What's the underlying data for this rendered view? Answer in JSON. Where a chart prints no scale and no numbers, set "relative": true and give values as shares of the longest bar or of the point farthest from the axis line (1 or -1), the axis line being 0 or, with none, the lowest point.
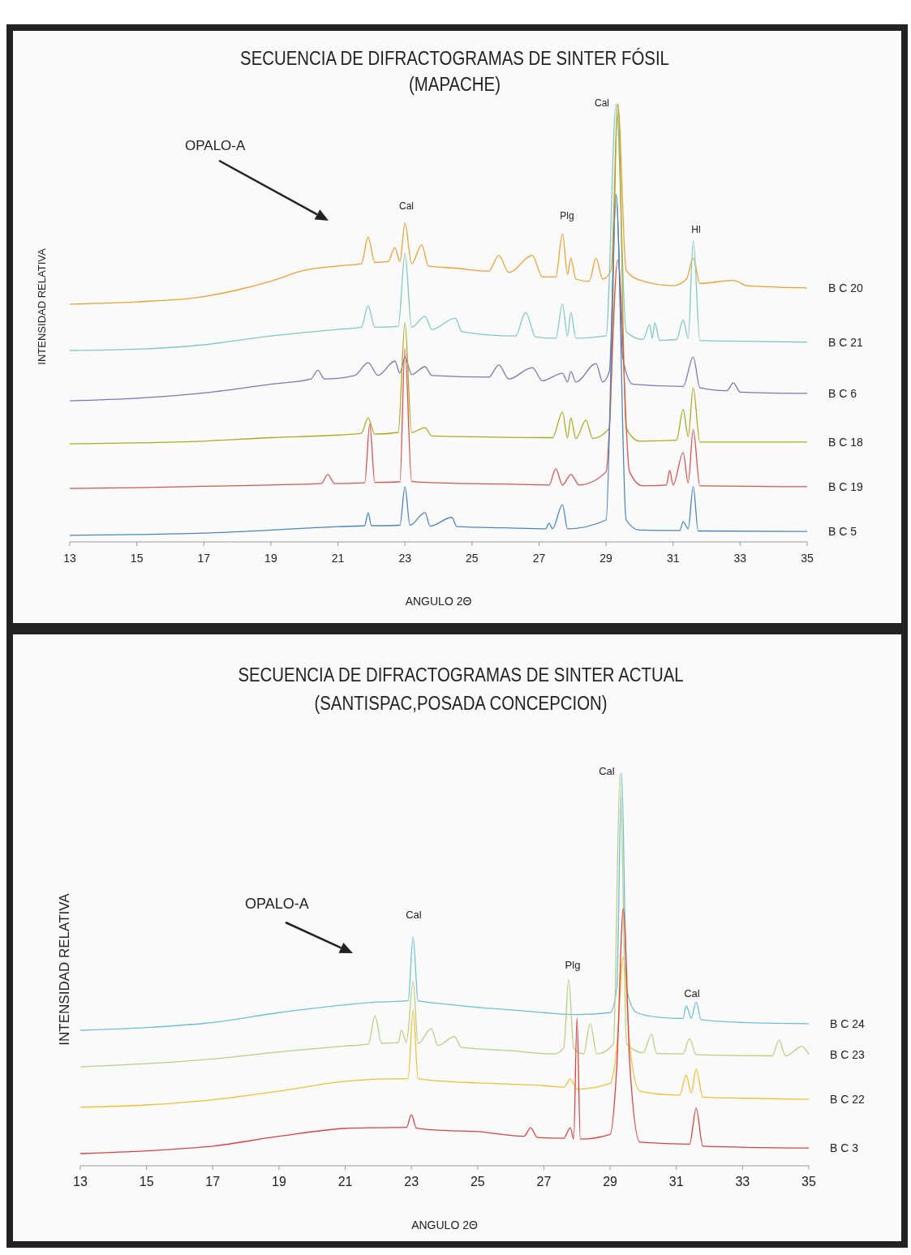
{
  "chart_data": [
    {
      "type": "line",
      "title": "SECUENCIA DE DIFRACTOGRAMAS DE  SINTER FÓSIL",
      "subtitle": "(MAPACHE)",
      "xlabel": "ANGULO 2Θ",
      "ylabel": "INTENSIDAD RELATIVA",
      "relative": true,
      "xlim": [
        13,
        35
      ],
      "xticks": [
        13,
        15,
        17,
        19,
        21,
        23,
        25,
        27,
        29,
        31,
        33,
        35
      ],
      "grid": false,
      "marker": "none",
      "line_style": "solid",
      "annotations": [
        "OPALO-A",
        "Cal",
        "Cal",
        "Plg",
        "Hl"
      ],
      "series": [
        {
          "name": "B C 20",
          "color": "#f0a030",
          "x": [
            13,
            15,
            17,
            18,
            19,
            20,
            21,
            21.7,
            21.9,
            22.1,
            22.5,
            22.7,
            22.85,
            23.0,
            23.2,
            23.5,
            23.7,
            24.5,
            25.5,
            25.8,
            26.1,
            26.8,
            27.1,
            27.5,
            27.7,
            27.85,
            27.95,
            28.1,
            28.5,
            28.7,
            28.9,
            29.15,
            29.35,
            29.6,
            30,
            31,
            31.4,
            31.6,
            31.8,
            32.8,
            33.2,
            35
          ],
          "values": [
            0.543,
            0.548,
            0.56,
            0.575,
            0.595,
            0.62,
            0.63,
            0.635,
            0.696,
            0.638,
            0.64,
            0.672,
            0.64,
            0.728,
            0.635,
            0.678,
            0.63,
            0.625,
            0.618,
            0.654,
            0.615,
            0.654,
            0.605,
            0.605,
            0.704,
            0.61,
            0.648,
            0.6,
            0.595,
            0.648,
            0.6,
            0.62,
            1.0,
            0.62,
            0.598,
            0.585,
            0.6,
            0.648,
            0.59,
            0.597,
            0.585,
            0.58
          ]
        },
        {
          "name": "B C 21",
          "color": "#7fcac6",
          "x": [
            13,
            15,
            17,
            19,
            20,
            21,
            21.7,
            21.9,
            22.1,
            22.8,
            23.0,
            23.2,
            23.6,
            23.8,
            24.5,
            24.7,
            26.3,
            26.6,
            26.9,
            27.5,
            27.7,
            27.85,
            27.95,
            28.1,
            29.0,
            29.3,
            29.6,
            30.1,
            30.3,
            30.38,
            30.45,
            30.6,
            31.1,
            31.3,
            31.45,
            31.6,
            31.8,
            33,
            35
          ],
          "values": [
            0.437,
            0.44,
            0.45,
            0.47,
            0.478,
            0.485,
            0.49,
            0.539,
            0.49,
            0.492,
            0.659,
            0.49,
            0.515,
            0.485,
            0.511,
            0.48,
            0.47,
            0.524,
            0.468,
            0.465,
            0.543,
            0.47,
            0.524,
            0.465,
            0.47,
            1.0,
            0.48,
            0.462,
            0.496,
            0.465,
            0.5,
            0.46,
            0.462,
            0.506,
            0.465,
            0.687,
            0.46,
            0.458,
            0.456
          ]
        },
        {
          "name": "B C 6",
          "color": "#7a78b8",
          "x": [
            13,
            15,
            17,
            19,
            20.2,
            20.4,
            20.6,
            21.5,
            21.9,
            22.2,
            22.7,
            22.85,
            23.0,
            23.2,
            23.6,
            23.8,
            25.5,
            25.8,
            26.1,
            26.8,
            27.1,
            27.7,
            27.85,
            27.95,
            28.1,
            28.7,
            28.9,
            29.1,
            29.3,
            29.5,
            29.8,
            31.3,
            31.6,
            31.8,
            32.6,
            32.8,
            33,
            35
          ],
          "values": [
            0.322,
            0.328,
            0.34,
            0.36,
            0.372,
            0.392,
            0.372,
            0.38,
            0.409,
            0.38,
            0.413,
            0.385,
            0.422,
            0.382,
            0.4,
            0.38,
            0.376,
            0.404,
            0.372,
            0.398,
            0.368,
            0.385,
            0.365,
            0.389,
            0.365,
            0.407,
            0.365,
            0.39,
            0.793,
            0.42,
            0.36,
            0.355,
            0.422,
            0.352,
            0.345,
            0.363,
            0.342,
            0.339
          ]
        },
        {
          "name": "B C 18",
          "color": "#b0a820",
          "x": [
            13,
            15,
            17,
            19,
            21,
            21.7,
            21.9,
            22.1,
            22.8,
            23.0,
            23.2,
            23.6,
            23.8,
            25,
            27.4,
            27.7,
            27.85,
            27.95,
            28.1,
            28.4,
            28.6,
            29.1,
            29.35,
            29.6,
            30,
            31.1,
            31.3,
            31.45,
            31.6,
            31.8,
            35
          ],
          "values": [
            0.224,
            0.226,
            0.23,
            0.238,
            0.244,
            0.248,
            0.283,
            0.246,
            0.25,
            0.5,
            0.25,
            0.261,
            0.242,
            0.24,
            0.238,
            0.296,
            0.238,
            0.283,
            0.236,
            0.278,
            0.236,
            0.26,
            1.0,
            0.26,
            0.23,
            0.232,
            0.302,
            0.24,
            0.352,
            0.228,
            0.228
          ]
        },
        {
          "name": "B C 19",
          "color": "#d9534f",
          "x": [
            13,
            15,
            17,
            19,
            20.5,
            20.7,
            20.9,
            21.8,
            21.95,
            22.1,
            22.85,
            23.0,
            23.2,
            24,
            26,
            27.3,
            27.5,
            27.7,
            27.95,
            28.2,
            29.0,
            29.35,
            29.7,
            30.1,
            30.8,
            30.9,
            31.0,
            31.3,
            31.45,
            31.6,
            31.8,
            35
          ],
          "values": [
            0.122,
            0.124,
            0.127,
            0.13,
            0.133,
            0.154,
            0.133,
            0.135,
            0.269,
            0.136,
            0.137,
            0.441,
            0.138,
            0.135,
            0.132,
            0.13,
            0.167,
            0.13,
            0.154,
            0.13,
            0.16,
            0.644,
            0.16,
            0.128,
            0.13,
            0.163,
            0.13,
            0.204,
            0.135,
            0.256,
            0.128,
            0.126
          ]
        },
        {
          "name": "B C 5",
          "color": "#4a86c0",
          "x": [
            13,
            15,
            17,
            19,
            21,
            21.8,
            21.9,
            22.0,
            22.85,
            23.0,
            23.15,
            23.6,
            23.75,
            24.4,
            24.55,
            26,
            27.2,
            27.3,
            27.4,
            27.7,
            27.85,
            29.0,
            29.3,
            29.6,
            30,
            31.2,
            31.3,
            31.45,
            31.6,
            31.75,
            35
          ],
          "values": [
            0.015,
            0.017,
            0.02,
            0.027,
            0.035,
            0.037,
            0.067,
            0.037,
            0.038,
            0.126,
            0.038,
            0.067,
            0.036,
            0.056,
            0.035,
            0.032,
            0.03,
            0.043,
            0.03,
            0.085,
            0.03,
            0.05,
            0.793,
            0.05,
            0.027,
            0.026,
            0.046,
            0.03,
            0.126,
            0.025,
            0.024
          ]
        }
      ]
    },
    {
      "type": "line",
      "title": "SECUENCIA DE DIFRACTOGRAMAS DE  SINTER ACTUAL",
      "subtitle": "(SANTISPAC,POSADA CONCEPCION)",
      "xlabel": "ANGULO 2Θ",
      "ylabel": "INTENSIDAD RELATIVA",
      "relative": true,
      "xlim": [
        13,
        35
      ],
      "xticks": [
        13,
        15,
        17,
        19,
        21,
        23,
        25,
        27,
        29,
        31,
        33,
        35
      ],
      "grid": false,
      "marker": "none",
      "line_style": "solid",
      "annotations": [
        "OPALO-A",
        "Cal",
        "Cal",
        "Plg",
        "Cal"
      ],
      "series": [
        {
          "name": "B C 24",
          "color": "#6cc0d8",
          "x": [
            13,
            15,
            17,
            19,
            21,
            22,
            22.9,
            23.05,
            23.2,
            24,
            25,
            26,
            27,
            28,
            29,
            29.2,
            29.35,
            29.5,
            29.8,
            30.5,
            31.2,
            31.3,
            31.45,
            31.6,
            31.75,
            33,
            35
          ],
          "values": [
            0.345,
            0.352,
            0.365,
            0.39,
            0.41,
            0.417,
            0.42,
            0.583,
            0.42,
            0.412,
            0.403,
            0.397,
            0.39,
            0.385,
            0.39,
            0.45,
            1.0,
            0.45,
            0.39,
            0.378,
            0.375,
            0.407,
            0.376,
            0.417,
            0.372,
            0.365,
            0.362
          ]
        },
        {
          "name": "B C 23",
          "color": "#b8d080",
          "x": [
            13,
            15,
            17,
            19,
            21,
            21.7,
            21.9,
            22.1,
            22.6,
            22.7,
            22.85,
            23.05,
            23.2,
            23.6,
            23.8,
            24.3,
            24.5,
            26,
            27.3,
            27.6,
            27.75,
            27.9,
            28.2,
            28.4,
            28.6,
            29.1,
            29.3,
            29.5,
            30.0,
            30.25,
            30.4,
            31.2,
            31.4,
            31.6,
            33.9,
            34.1,
            34.3,
            34.8,
            35
          ],
          "values": [
            0.252,
            0.26,
            0.272,
            0.29,
            0.305,
            0.31,
            0.382,
            0.312,
            0.314,
            0.345,
            0.314,
            0.469,
            0.312,
            0.349,
            0.306,
            0.329,
            0.302,
            0.293,
            0.285,
            0.3,
            0.475,
            0.3,
            0.285,
            0.362,
            0.285,
            0.31,
            1.0,
            0.31,
            0.288,
            0.335,
            0.286,
            0.285,
            0.324,
            0.283,
            0.28,
            0.32,
            0.28,
            0.304,
            0.283
          ]
        },
        {
          "name": "B C 22",
          "color": "#f0c030",
          "x": [
            13,
            15,
            17,
            19,
            21,
            22,
            22.9,
            23.05,
            23.2,
            24,
            25,
            26,
            27,
            27.6,
            27.8,
            28.0,
            29.0,
            29.2,
            29.4,
            29.6,
            29.9,
            31.1,
            31.3,
            31.45,
            31.6,
            31.8,
            33,
            35
          ],
          "values": [
            0.149,
            0.155,
            0.168,
            0.19,
            0.215,
            0.221,
            0.222,
            0.397,
            0.222,
            0.215,
            0.211,
            0.208,
            0.204,
            0.2,
            0.221,
            0.195,
            0.21,
            0.3,
            0.531,
            0.3,
            0.19,
            0.18,
            0.231,
            0.185,
            0.246,
            0.175,
            0.172,
            0.169
          ]
        },
        {
          "name": "B C 3",
          "color": "#e04040",
          "x": [
            13,
            15,
            17,
            19,
            21,
            22,
            22.85,
            23.0,
            23.15,
            24,
            25,
            26.4,
            26.6,
            26.8,
            27.6,
            27.8,
            27.9,
            28.0,
            28.1,
            29.0,
            29.2,
            29.4,
            29.6,
            29.9,
            31.4,
            31.6,
            31.8,
            35
          ],
          "values": [
            0.031,
            0.038,
            0.05,
            0.075,
            0.095,
            0.097,
            0.098,
            0.13,
            0.096,
            0.09,
            0.087,
            0.075,
            0.097,
            0.072,
            0.07,
            0.097,
            0.068,
            0.376,
            0.068,
            0.08,
            0.25,
            0.655,
            0.25,
            0.06,
            0.055,
            0.147,
            0.05,
            0.045
          ]
        }
      ]
    }
  ]
}
